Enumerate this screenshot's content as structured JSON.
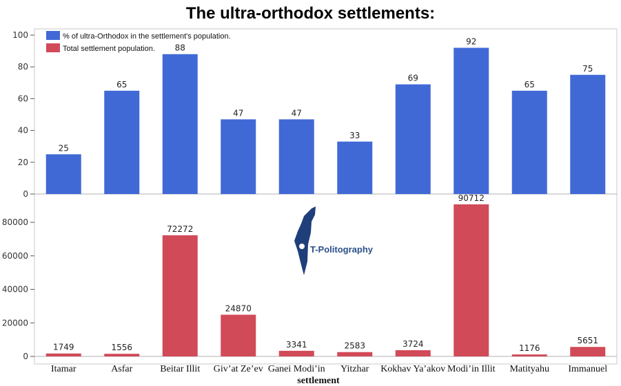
{
  "title": "The ultra-orthodox settlements:",
  "logo_text": "T-Politography",
  "chart_data": [
    {
      "type": "bar",
      "categories": [
        "Itamar",
        "Asfar",
        "Beitar Illit",
        "Giv’at Ze’ev",
        "Ganei Modi’in",
        "Yitzhar",
        "Kokhav Ya’akov",
        "Modi’in Illit",
        "Matityahu",
        "Immanuel"
      ],
      "series": [
        {
          "name": "% of ultra-Orthodox in the settlement's population.",
          "color": "#4169d6",
          "values": [
            25,
            65,
            88,
            47,
            47,
            33,
            69,
            92,
            65,
            75
          ]
        }
      ],
      "ylim": [
        0,
        100
      ],
      "yticks": [
        0,
        20,
        40,
        60,
        80,
        100
      ],
      "grid": false,
      "legend": "top-left"
    },
    {
      "type": "bar",
      "categories": [
        "Itamar",
        "Asfar",
        "Beitar Illit",
        "Giv’at Ze’ev",
        "Ganei Modi’in",
        "Yitzhar",
        "Kokhav Ya’akov",
        "Modi’in Illit",
        "Matityahu",
        "Immanuel"
      ],
      "series": [
        {
          "name": "Total settlement population.",
          "color": "#d14a58",
          "values": [
            1749,
            1556,
            72272,
            24870,
            3341,
            2583,
            3724,
            90712,
            1176,
            5651
          ]
        }
      ],
      "ylim": [
        0,
        94000
      ],
      "yticks": [
        0,
        20000,
        40000,
        60000,
        80000
      ],
      "xlabel": "settlement",
      "grid": false,
      "legend": "top-left"
    }
  ]
}
